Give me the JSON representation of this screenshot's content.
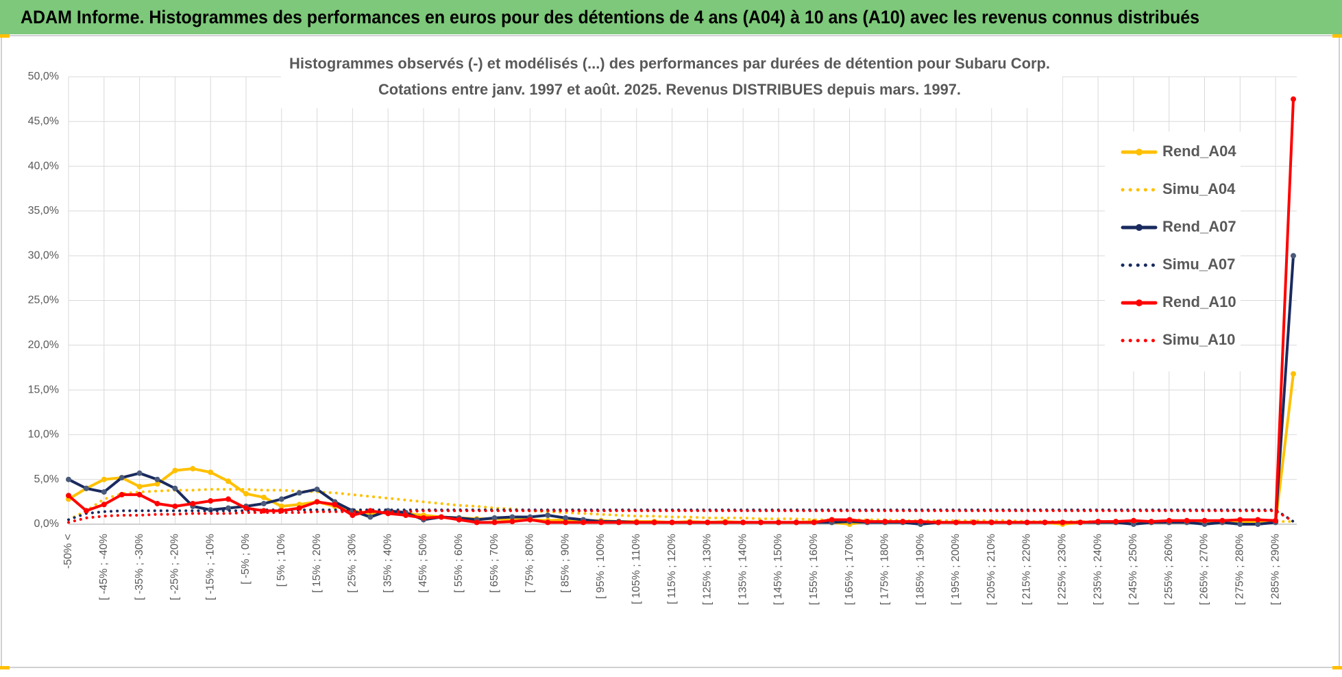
{
  "header": {
    "title": "ADAM Informe. Histogrammes des performances en euros pour des détentions de 4 ans (A04) à 10 ans (A10) avec les revenus connus distribués"
  },
  "chart_data": {
    "type": "line",
    "title": "Histogrammes observés (-) et modélisés (...) des performances par durées de détention pour Subaru Corp.",
    "subtitle": "Cotations entre janv. 1997 et août. 2025. Revenus DISTRIBUES depuis mars. 1997.",
    "categories": [
      "-50% <",
      null,
      "[ -45% ; -40%",
      null,
      "[ -35% ; -30%",
      null,
      "[ -25% ; -20%",
      null,
      "[ -15% ; -10%",
      null,
      "[ -5% ; 0%",
      null,
      "[ 5% ; 10%",
      null,
      "[ 15% ; 20%",
      null,
      "[ 25% ; 30%",
      null,
      "[ 35% ; 40%",
      null,
      "[ 45% ; 50%",
      null,
      "[ 55% ; 60%",
      null,
      "[ 65% ; 70%",
      null,
      "[ 75% ; 80%",
      null,
      "[ 85% ; 90%",
      null,
      "[ 95% ; 100%",
      null,
      "[ 105% ; 110%",
      null,
      "[ 115% ; 120%",
      null,
      "[ 125% ; 130%",
      null,
      "[ 135% ; 140%",
      null,
      "[ 145% ; 150%",
      null,
      "[ 155% ; 160%",
      null,
      "[ 165% ; 170%",
      null,
      "[ 175% ; 180%",
      null,
      "[ 185% ; 190%",
      null,
      "[ 195% ; 200%",
      null,
      "[ 205% ; 210%",
      null,
      "[ 215% ; 220%",
      null,
      "[ 225% ; 230%",
      null,
      "[ 235% ; 240%",
      null,
      "[ 245% ; 250%",
      null,
      "[ 255% ; 260%",
      null,
      "[ 265% ; 270%",
      null,
      "[ 275% ; 280%",
      null,
      "[ 285% ; 290%",
      null
    ],
    "series": [
      {
        "name": "Rend_A04",
        "color": "#ffc000",
        "style": "solid",
        "values": [
          2.8,
          4.0,
          5.0,
          5.2,
          4.2,
          4.5,
          6.0,
          6.2,
          5.8,
          4.8,
          3.4,
          3.0,
          2.0,
          2.2,
          2.5,
          2.0,
          1.5,
          1.2,
          1.3,
          1.2,
          1.0,
          0.8,
          0.7,
          0.6,
          0.6,
          0.5,
          0.5,
          0.4,
          0.5,
          0.4,
          0.4,
          0.3,
          0.3,
          0.3,
          0.2,
          0.3,
          0.2,
          0.3,
          0.2,
          0.2,
          0.2,
          0.2,
          0.3,
          0.2,
          0.0,
          0.3,
          0.2,
          0.3,
          0.0,
          0.2,
          0.2,
          0.2,
          0.2,
          0.2,
          0.2,
          0.2,
          0.0,
          0.2,
          0.2,
          0.2,
          0.2,
          0.2,
          0.2,
          0.2,
          0.2,
          0.2,
          0.2,
          0.2,
          0.2,
          16.8
        ]
      },
      {
        "name": "Simu_A04",
        "color": "#ffc000",
        "style": "dotted",
        "values": [
          0.5,
          1.5,
          2.8,
          3.4,
          3.6,
          3.7,
          3.8,
          3.8,
          3.9,
          3.9,
          3.9,
          3.8,
          3.8,
          3.7,
          3.6,
          3.5,
          3.3,
          3.1,
          2.9,
          2.7,
          2.5,
          2.3,
          2.1,
          2.0,
          1.8,
          1.7,
          1.5,
          1.4,
          1.3,
          1.2,
          1.1,
          1.0,
          0.9,
          0.9,
          0.8,
          0.8,
          0.7,
          0.7,
          0.7,
          0.6,
          0.6,
          0.6,
          0.5,
          0.5,
          0.5,
          0.5,
          0.5,
          0.4,
          0.4,
          0.4,
          0.4,
          0.4,
          0.4,
          0.4,
          0.3,
          0.3,
          0.3,
          0.3,
          0.3,
          0.3,
          0.3,
          0.3,
          0.3,
          0.3,
          0.3,
          0.3,
          0.3,
          0.3,
          0.3,
          0.3
        ]
      },
      {
        "name": "Rend_A07",
        "color": "#1a2a5e",
        "style": "solid",
        "values": [
          5.0,
          4.0,
          3.6,
          5.2,
          5.7,
          5.0,
          4.0,
          2.0,
          1.6,
          1.8,
          2.0,
          2.3,
          2.8,
          3.5,
          3.9,
          2.5,
          1.5,
          0.8,
          1.5,
          1.3,
          0.5,
          0.8,
          0.7,
          0.5,
          0.7,
          0.8,
          0.8,
          1.0,
          0.7,
          0.5,
          0.3,
          0.3,
          0.2,
          0.2,
          0.2,
          0.2,
          0.2,
          0.2,
          0.2,
          0.2,
          0.2,
          0.2,
          0.2,
          0.2,
          0.3,
          0.2,
          0.2,
          0.2,
          0.0,
          0.2,
          0.2,
          0.2,
          0.2,
          0.2,
          0.2,
          0.2,
          0.2,
          0.2,
          0.2,
          0.2,
          0.0,
          0.2,
          0.2,
          0.2,
          0.0,
          0.2,
          0.0,
          0.0,
          0.2,
          30.0
        ]
      },
      {
        "name": "Simu_A07",
        "color": "#1a2a5e",
        "style": "dotted",
        "values": [
          0.5,
          1.2,
          1.4,
          1.5,
          1.5,
          1.5,
          1.5,
          1.5,
          1.5,
          1.5,
          1.5,
          1.6,
          1.6,
          1.6,
          1.6,
          1.6,
          1.6,
          1.6,
          1.6,
          1.6,
          1.6,
          1.6,
          1.6,
          1.6,
          1.6,
          1.6,
          1.6,
          1.6,
          1.6,
          1.6,
          1.6,
          1.6,
          1.6,
          1.6,
          1.6,
          1.6,
          1.6,
          1.6,
          1.6,
          1.6,
          1.6,
          1.6,
          1.6,
          1.6,
          1.6,
          1.6,
          1.6,
          1.6,
          1.6,
          1.6,
          1.6,
          1.6,
          1.6,
          1.6,
          1.6,
          1.6,
          1.6,
          1.6,
          1.6,
          1.6,
          1.6,
          1.6,
          1.6,
          1.6,
          1.6,
          1.6,
          1.6,
          1.6,
          1.6,
          0.3
        ]
      },
      {
        "name": "Rend_A10",
        "color": "#ff0000",
        "style": "solid",
        "values": [
          3.2,
          1.5,
          2.2,
          3.3,
          3.3,
          2.3,
          2.0,
          2.3,
          2.6,
          2.8,
          1.8,
          1.5,
          1.5,
          1.8,
          2.5,
          2.2,
          1.0,
          1.5,
          1.2,
          1.0,
          0.7,
          0.8,
          0.5,
          0.2,
          0.2,
          0.3,
          0.5,
          0.2,
          0.2,
          0.2,
          0.2,
          0.2,
          0.2,
          0.2,
          0.2,
          0.2,
          0.2,
          0.2,
          0.2,
          0.2,
          0.2,
          0.2,
          0.2,
          0.5,
          0.5,
          0.3,
          0.3,
          0.3,
          0.3,
          0.2,
          0.2,
          0.2,
          0.2,
          0.2,
          0.2,
          0.2,
          0.2,
          0.2,
          0.3,
          0.3,
          0.4,
          0.3,
          0.4,
          0.4,
          0.4,
          0.4,
          0.5,
          0.5,
          0.4,
          47.5
        ]
      },
      {
        "name": "Simu_A10",
        "color": "#ff0000",
        "style": "dotted",
        "values": [
          0.2,
          0.7,
          0.9,
          1.0,
          1.0,
          1.1,
          1.1,
          1.2,
          1.2,
          1.2,
          1.3,
          1.3,
          1.3,
          1.3,
          1.4,
          1.4,
          1.4,
          1.4,
          1.4,
          1.4,
          1.5,
          1.5,
          1.5,
          1.5,
          1.5,
          1.5,
          1.5,
          1.5,
          1.5,
          1.5,
          1.5,
          1.5,
          1.5,
          1.5,
          1.5,
          1.5,
          1.5,
          1.5,
          1.5,
          1.5,
          1.5,
          1.5,
          1.5,
          1.5,
          1.5,
          1.5,
          1.5,
          1.5,
          1.5,
          1.5,
          1.5,
          1.5,
          1.5,
          1.5,
          1.5,
          1.5,
          1.5,
          1.5,
          1.5,
          1.5,
          1.5,
          1.5,
          1.5,
          1.5,
          1.5,
          1.5,
          1.5,
          1.5,
          1.5,
          0.3
        ]
      }
    ],
    "ylim": [
      0,
      50
    ],
    "yticks": [
      {
        "value": 0,
        "label": "0,0%"
      },
      {
        "value": 5,
        "label": "5,0%"
      },
      {
        "value": 10,
        "label": "10,0%"
      },
      {
        "value": 15,
        "label": "15,0%"
      },
      {
        "value": 20,
        "label": "20,0%"
      },
      {
        "value": 25,
        "label": "25,0%"
      },
      {
        "value": 30,
        "label": "30,0%"
      },
      {
        "value": 35,
        "label": "35,0%"
      },
      {
        "value": 40,
        "label": "40,0%"
      },
      {
        "value": 45,
        "label": "45,0%"
      },
      {
        "value": 50,
        "label": "50,0%"
      }
    ],
    "grid": true,
    "legend": "right"
  }
}
